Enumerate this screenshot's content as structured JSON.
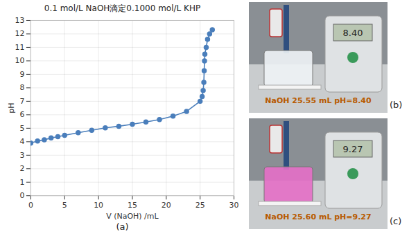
{
  "chart_data": {
    "type": "line",
    "title": "0.1 mol/L NaOH滴定0.1000 mol/L KHP",
    "panel_label": "(a)",
    "x_label": "V (NaOH) /mL",
    "y_label": "pH",
    "x": [
      0,
      1,
      2,
      3,
      4,
      5,
      7,
      9,
      11,
      13,
      15,
      17,
      19,
      21,
      23,
      25,
      25.3,
      25.45,
      25.55,
      25.6,
      25.65,
      25.7,
      25.9,
      26.1,
      26.4,
      26.8
    ],
    "series": [
      {
        "name": "pH",
        "color": "#4a7ebb",
        "marker": "circle",
        "line_style": "solid",
        "values": [
          3.9,
          4.05,
          4.15,
          4.28,
          4.38,
          4.48,
          4.67,
          4.85,
          5.03,
          5.15,
          5.3,
          5.47,
          5.65,
          5.9,
          6.25,
          7.0,
          7.35,
          7.8,
          8.4,
          9.27,
          10.0,
          10.5,
          11.0,
          11.6,
          12.0,
          12.3
        ]
      }
    ],
    "xlim": [
      0,
      30
    ],
    "xticks": [
      0,
      5,
      10,
      15,
      20,
      25,
      30
    ],
    "ylim": [
      0,
      13
    ],
    "yticks": [
      0,
      1,
      2,
      3,
      4,
      5,
      6,
      7,
      8,
      9,
      10,
      11,
      12,
      13
    ],
    "grid": true
  },
  "photos": [
    {
      "panel_label": "(b)",
      "caption": "NaOH 25.55 mL  pH=8.40",
      "display": "8.40",
      "color": "#eef3f6"
    },
    {
      "panel_label": "(c)",
      "caption": "NaOH 25.60 mL  pH=9.27",
      "display": "9.27",
      "color": "#e46fc6"
    }
  ]
}
